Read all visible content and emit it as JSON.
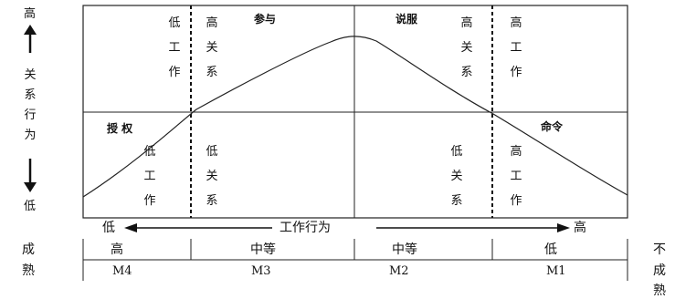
{
  "left_axis": {
    "top_label": "高",
    "bottom_label": "低",
    "title_chars": [
      "关",
      "系",
      "行",
      "为"
    ]
  },
  "bottom_axis": {
    "left_label": "低",
    "center_label": "工作行为",
    "right_label": "高"
  },
  "quadrants": {
    "top_left": {
      "col1": [
        "低",
        "工",
        "作"
      ],
      "col2": [
        "高",
        "关",
        "系"
      ],
      "label": "参与"
    },
    "top_right": {
      "label": "说服",
      "col1": [
        "高",
        "关",
        "系"
      ],
      "col2": [
        "高",
        "工",
        "作"
      ]
    },
    "bottom_left": {
      "label": "授 权",
      "col1": [
        "低",
        "工",
        "作"
      ],
      "col2": [
        "低",
        "关",
        "系"
      ]
    },
    "bottom_right": {
      "label": "命令",
      "col1": [
        "低",
        "关",
        "系"
      ],
      "col2": [
        "高",
        "工",
        "作"
      ]
    }
  },
  "maturity": {
    "left_chars": [
      "成",
      "熟"
    ],
    "right_chars": [
      "不",
      "成",
      "熟"
    ],
    "levels": [
      "高",
      "中等",
      "中等",
      "低"
    ],
    "codes": [
      "M4",
      "M3",
      "M2",
      "M1"
    ]
  }
}
